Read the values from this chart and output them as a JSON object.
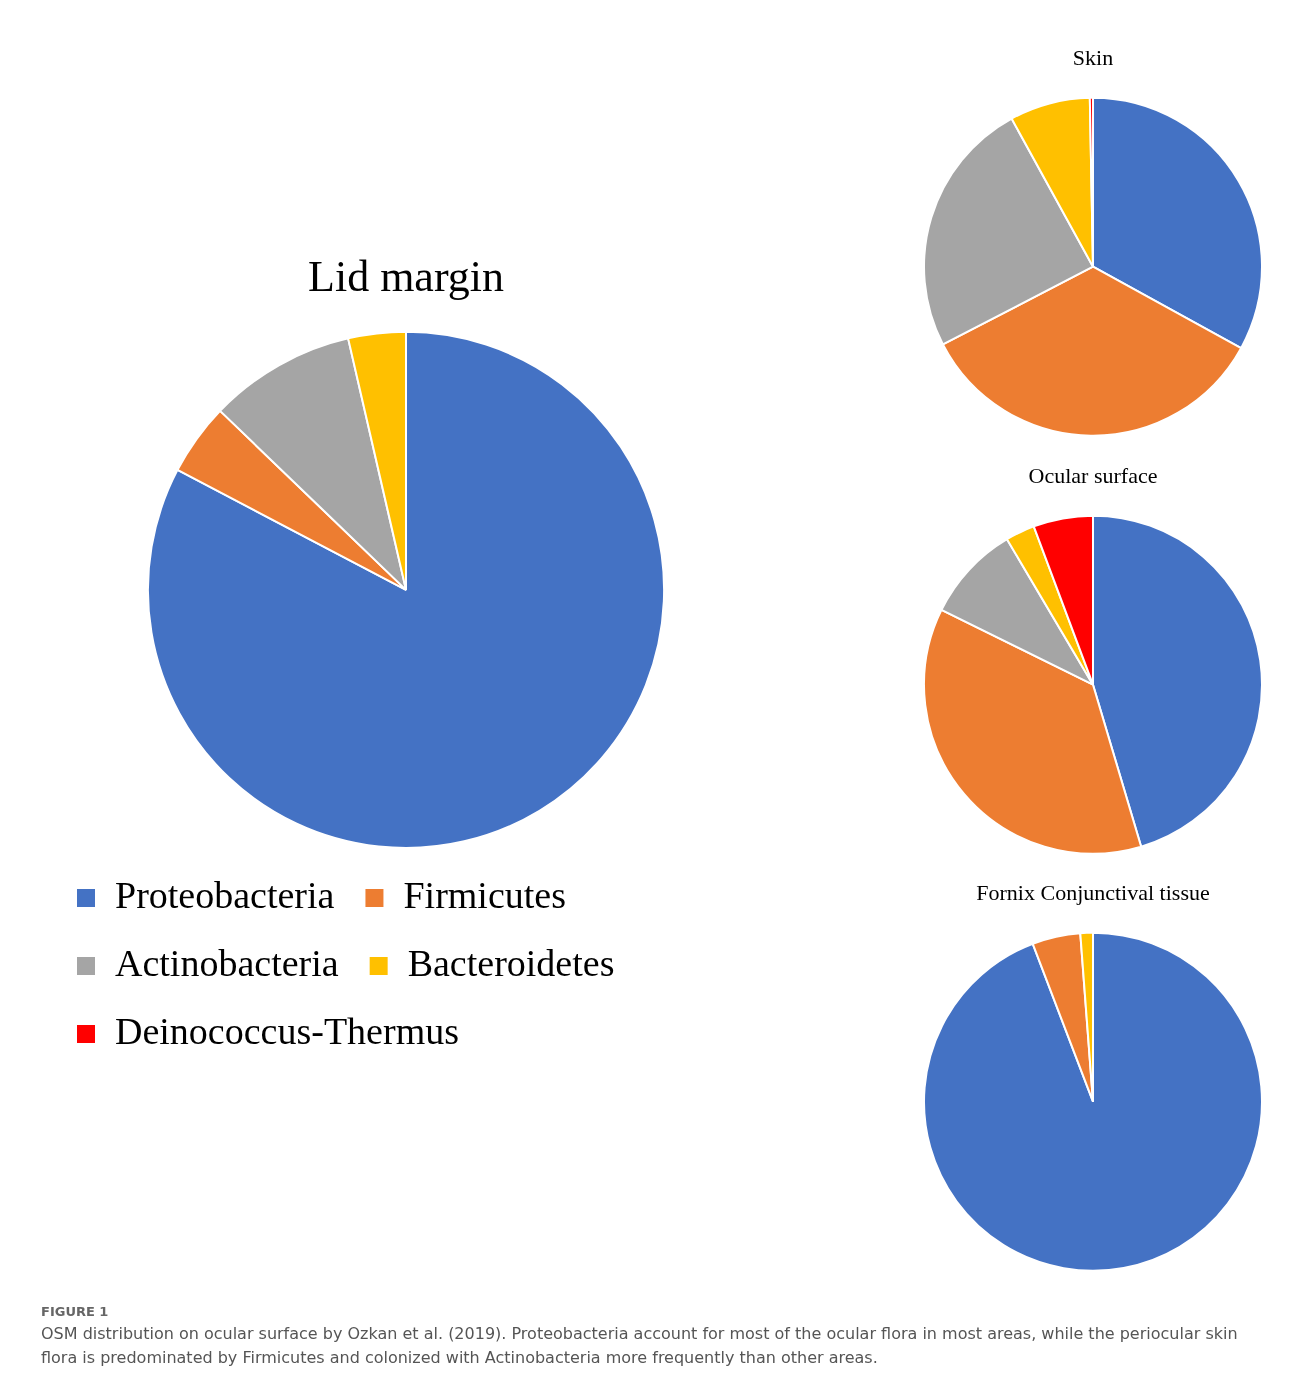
{
  "chart_data": [
    {
      "type": "pie",
      "title": "Lid margin",
      "categories": [
        "Proteobacteria",
        "Firmicutes",
        "Actinobacteria",
        "Bacteroidetes",
        "Deinococcus-Thermus"
      ],
      "values": [
        82.7,
        4.5,
        9.2,
        3.6,
        0
      ],
      "colors": [
        "#4472c4",
        "#ed7d31",
        "#a5a5a5",
        "#ffc000",
        "#ff0000"
      ],
      "legend": "bottom",
      "annotations": [
        "FIGURE 1",
        "OSM distribution on ocular surface by Ozkan et al. (2019). Proteobacteria account for most of the ocular flora in most areas, while the periocular skin flora is predominated by Firmicutes and colonized with Actinobacteria more frequently than other areas."
      ]
    },
    {
      "type": "pie",
      "title": "Skin",
      "categories": [
        null,
        null,
        null,
        null,
        null
      ],
      "values": [
        33,
        34.4,
        24.6,
        7.7,
        0.3
      ],
      "colors": [
        "#4472c4",
        "#ed7d31",
        "#a5a5a5",
        "#ffc000",
        "#ff0000"
      ]
    },
    {
      "type": "pie",
      "title": "Ocular surface",
      "categories": [
        null,
        null,
        null,
        null,
        null
      ],
      "values": [
        45.4,
        36.9,
        9.2,
        2.8,
        5.7
      ],
      "colors": [
        "#4472c4",
        "#ed7d31",
        "#a5a5a5",
        "#ffc000",
        "#ff0000"
      ]
    },
    {
      "type": "pie",
      "title": "Fornix Conjunctival tissue",
      "categories": [
        null,
        null,
        null
      ],
      "values": [
        94.2,
        4.6,
        1.2
      ],
      "colors": [
        "#4472c4",
        "#ed7d31",
        "#ffc000"
      ]
    }
  ]
}
